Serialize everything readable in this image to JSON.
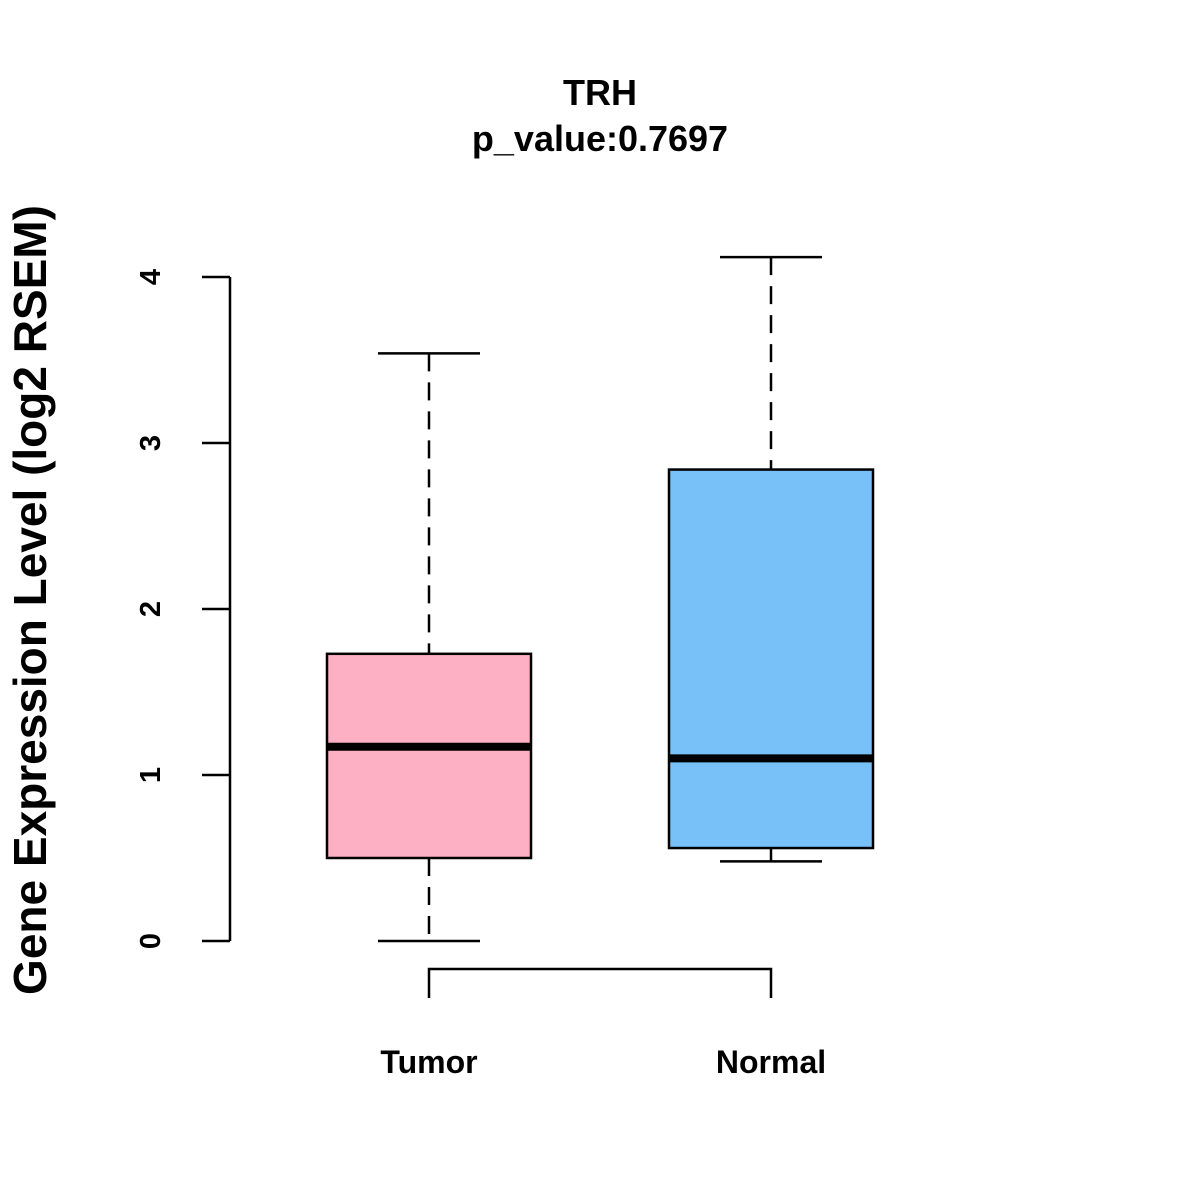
{
  "chart_data": {
    "type": "boxplot",
    "title": "TRH",
    "subtitle": "p_value:0.7697",
    "xlabel": "",
    "ylabel": "Gene Expression Level (log2 RSEM)",
    "ylim": [
      0,
      4
    ],
    "yticks": [
      0,
      1,
      2,
      3,
      4
    ],
    "grid": false,
    "categories": [
      "Tumor",
      "Normal"
    ],
    "boxes": [
      {
        "name": "Tumor",
        "whisker_low": 0.0,
        "q1": 0.5,
        "median": 1.17,
        "q3": 1.73,
        "whisker_high": 3.54,
        "color": "#FDB0C3"
      },
      {
        "name": "Normal",
        "whisker_low": 0.48,
        "q1": 0.56,
        "median": 1.1,
        "q3": 2.84,
        "whisker_high": 4.12,
        "color": "#77C1F8"
      }
    ],
    "comparison": {
      "from": "Tumor",
      "to": "Normal",
      "label": ""
    }
  }
}
